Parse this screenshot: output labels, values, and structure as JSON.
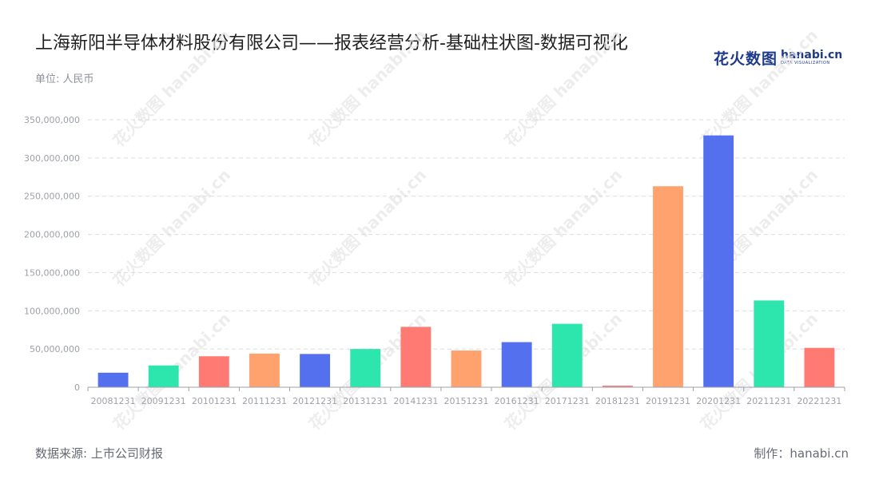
{
  "title": "上海新阳半导体材料股份有限公司——报表经营分析-基础柱状图-数据可视化",
  "unit_label": "单位: 人民币",
  "logo": {
    "cn": "花火数图",
    "en": "hanabi.cn",
    "sub": "DATA VISUALIZATION"
  },
  "watermark": "花火数图 hanabi.cn",
  "source": "数据来源: 上市公司财报",
  "maker": "制作：hanabi.cn",
  "colors": {
    "blue": "#5470ee",
    "green": "#2de6ad",
    "red": "#ff7a72",
    "orange": "#ffa26e",
    "grid": "#dcdcdc",
    "axis": "#9ea1a9",
    "tick": "#9ea1a9"
  },
  "chart_data": {
    "type": "bar",
    "categories": [
      "20081231",
      "20091231",
      "20101231",
      "20111231",
      "20121231",
      "20131231",
      "20141231",
      "20151231",
      "20161231",
      "20171231",
      "20181231",
      "20191231",
      "20201231",
      "20211231",
      "20221231"
    ],
    "values": [
      19000000,
      28500000,
      40500000,
      44000000,
      43500000,
      50000000,
      79000000,
      48000000,
      59000000,
      83000000,
      2000000,
      263000000,
      329500000,
      113500000,
      51500000
    ],
    "bar_colors": [
      "blue",
      "green",
      "red",
      "orange",
      "blue",
      "green",
      "red",
      "orange",
      "blue",
      "green",
      "red",
      "orange",
      "blue",
      "green",
      "red"
    ],
    "ylim": [
      0,
      350000000
    ],
    "yticks": [
      0,
      50000000,
      100000000,
      150000000,
      200000000,
      250000000,
      300000000,
      350000000
    ],
    "ytick_labels": [
      "0",
      "50,000,000",
      "100,000,000",
      "150,000,000",
      "200,000,000",
      "250,000,000",
      "300,000,000",
      "350,000,000"
    ],
    "grid": true
  }
}
